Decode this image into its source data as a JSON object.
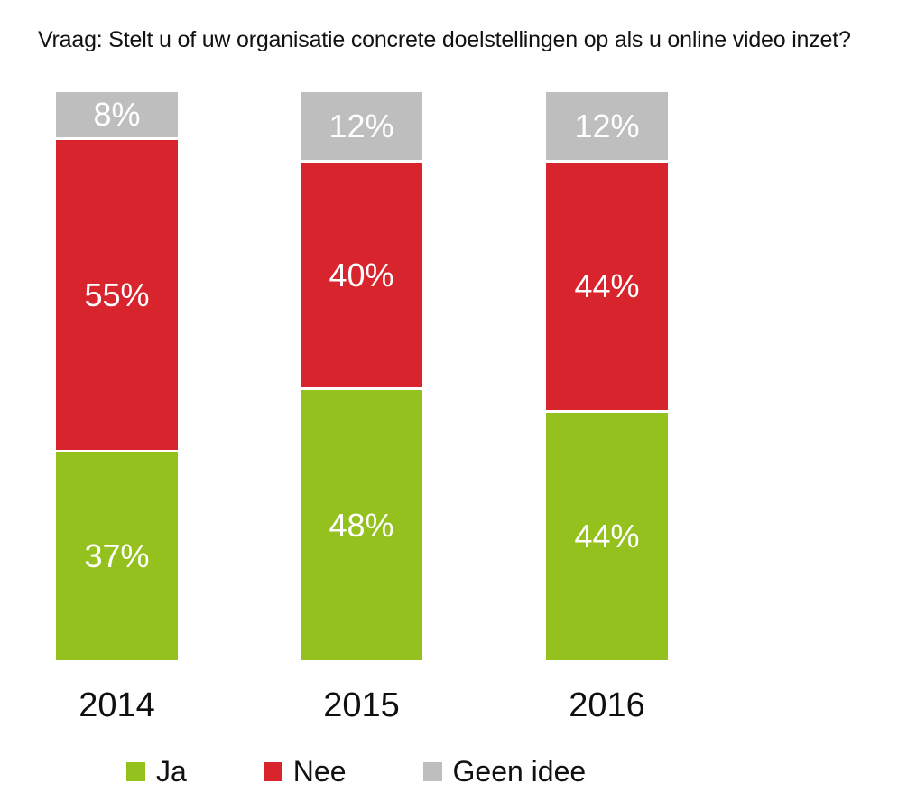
{
  "chart_data": {
    "type": "bar",
    "stacked": true,
    "orientation": "vertical",
    "title": "Vraag: Stelt u of uw organisatie concrete doelstellingen op als u online video inzet?",
    "categories": [
      "2014",
      "2015",
      "2016"
    ],
    "series": [
      {
        "name": "Ja",
        "color": "#94C11E",
        "values": [
          37,
          48,
          44
        ]
      },
      {
        "name": "Nee",
        "color": "#D8242C",
        "values": [
          55,
          40,
          44
        ]
      },
      {
        "name": "Geen idee",
        "color": "#BEBEBE",
        "values": [
          8,
          12,
          12
        ]
      }
    ],
    "value_suffix": "%",
    "ylim": [
      0,
      100
    ],
    "grid": false,
    "axes_visible": false,
    "data_label_color": "#FFFFFF",
    "data_label_position": "inside-center",
    "legend_position": "bottom",
    "background_color": "#FFFFFF"
  }
}
